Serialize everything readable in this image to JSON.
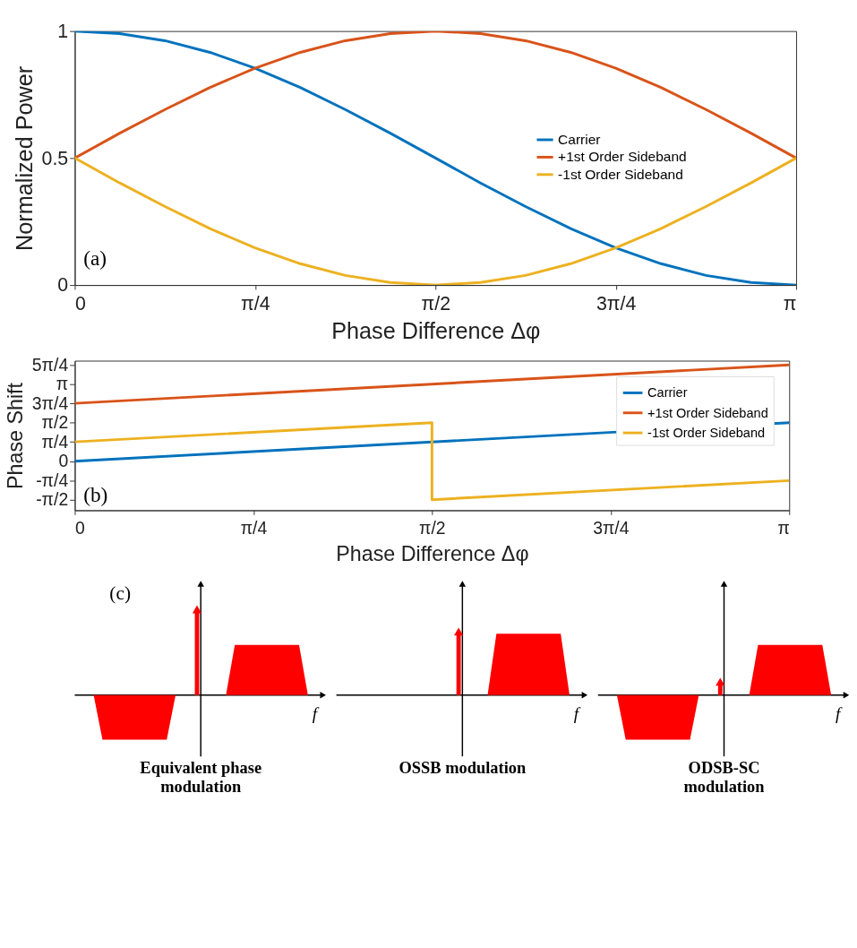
{
  "chart_data": [
    {
      "type": "line",
      "xlabel": "Phase Difference Δφ",
      "ylabel": "Normalized Power",
      "annotations": [
        "(a)"
      ],
      "legend": "right",
      "grid": false,
      "xlim": [
        0,
        3.1416
      ],
      "xticks": [
        0,
        {
          "value": 0.7854,
          "label": "π/4"
        },
        {
          "value": 1.5708,
          "label": "π/2"
        },
        {
          "value": 2.3562,
          "label": "3π/4"
        },
        {
          "value": 3.1416,
          "label": "π"
        }
      ],
      "ylim": [
        0,
        1
      ],
      "yticks": [
        0,
        0.5,
        1
      ],
      "x": [
        0,
        0.196,
        0.393,
        0.589,
        0.785,
        0.982,
        1.178,
        1.374,
        1.571,
        1.767,
        1.963,
        2.16,
        2.356,
        2.553,
        2.749,
        2.945,
        3.1416
      ],
      "series": [
        {
          "name": "Carrier",
          "color": "#0072bd",
          "values": [
            1,
            0.99,
            0.962,
            0.916,
            0.854,
            0.778,
            0.691,
            0.598,
            0.5,
            0.402,
            0.309,
            0.222,
            0.146,
            0.084,
            0.038,
            0.01,
            0
          ]
        },
        {
          "name": "+1st Order Sideband",
          "color": "#d95319",
          "values": [
            0.5,
            0.598,
            0.691,
            0.778,
            0.854,
            0.916,
            0.962,
            0.99,
            1,
            0.99,
            0.962,
            0.916,
            0.854,
            0.778,
            0.691,
            0.598,
            0.5
          ]
        },
        {
          "name": "-1st Order Sideband",
          "color": "#edb120",
          "values": [
            0.5,
            0.402,
            0.309,
            0.222,
            0.146,
            0.084,
            0.038,
            0.01,
            0,
            0.01,
            0.038,
            0.084,
            0.146,
            0.222,
            0.309,
            0.402,
            0.5
          ]
        }
      ]
    },
    {
      "type": "line",
      "xlabel": "Phase Difference Δφ",
      "ylabel": "Phase Shift",
      "annotations": [
        "(b)"
      ],
      "legend": "top right",
      "grid": false,
      "xlim": [
        0,
        3.1416
      ],
      "xticks": [
        0,
        {
          "value": 0.7854,
          "label": "π/4"
        },
        {
          "value": 1.5708,
          "label": "π/2"
        },
        {
          "value": 2.3562,
          "label": "3π/4"
        },
        {
          "value": 3.1416,
          "label": "π"
        }
      ],
      "ylim": [
        -2.0,
        4.1
      ],
      "yticks": [
        {
          "value": -1.5708,
          "label": "-π/2"
        },
        {
          "value": -0.7854,
          "label": "-π/4"
        },
        0,
        {
          "value": 0.7854,
          "label": "π/4"
        },
        {
          "value": 1.5708,
          "label": "π/2"
        },
        {
          "value": 2.3562,
          "label": "3π/4"
        },
        {
          "value": 3.1416,
          "label": "π"
        },
        {
          "value": 3.927,
          "label": "5π/4"
        }
      ],
      "series": [
        {
          "name": "Carrier",
          "color": "#0072bd",
          "x": [
            0,
            3.1416
          ],
          "values": [
            0,
            1.57
          ]
        },
        {
          "name": "+1st Order Sideband",
          "color": "#d95319",
          "x": [
            0,
            3.1416
          ],
          "values": [
            2.36,
            3.93
          ]
        },
        {
          "name": "-1st Order Sideband",
          "color": "#edb120",
          "x": [
            0,
            1.5708,
            1.5708,
            3.1416
          ],
          "values": [
            0.79,
            1.57,
            -1.57,
            -0.79
          ]
        }
      ]
    },
    {
      "type": "other",
      "annotations": [
        "(c)",
        "f",
        "f",
        "f",
        "Equivalent phase\nmodulation",
        "OSSB modulation",
        "ODSB-SC\nmodulation"
      ]
    }
  ]
}
